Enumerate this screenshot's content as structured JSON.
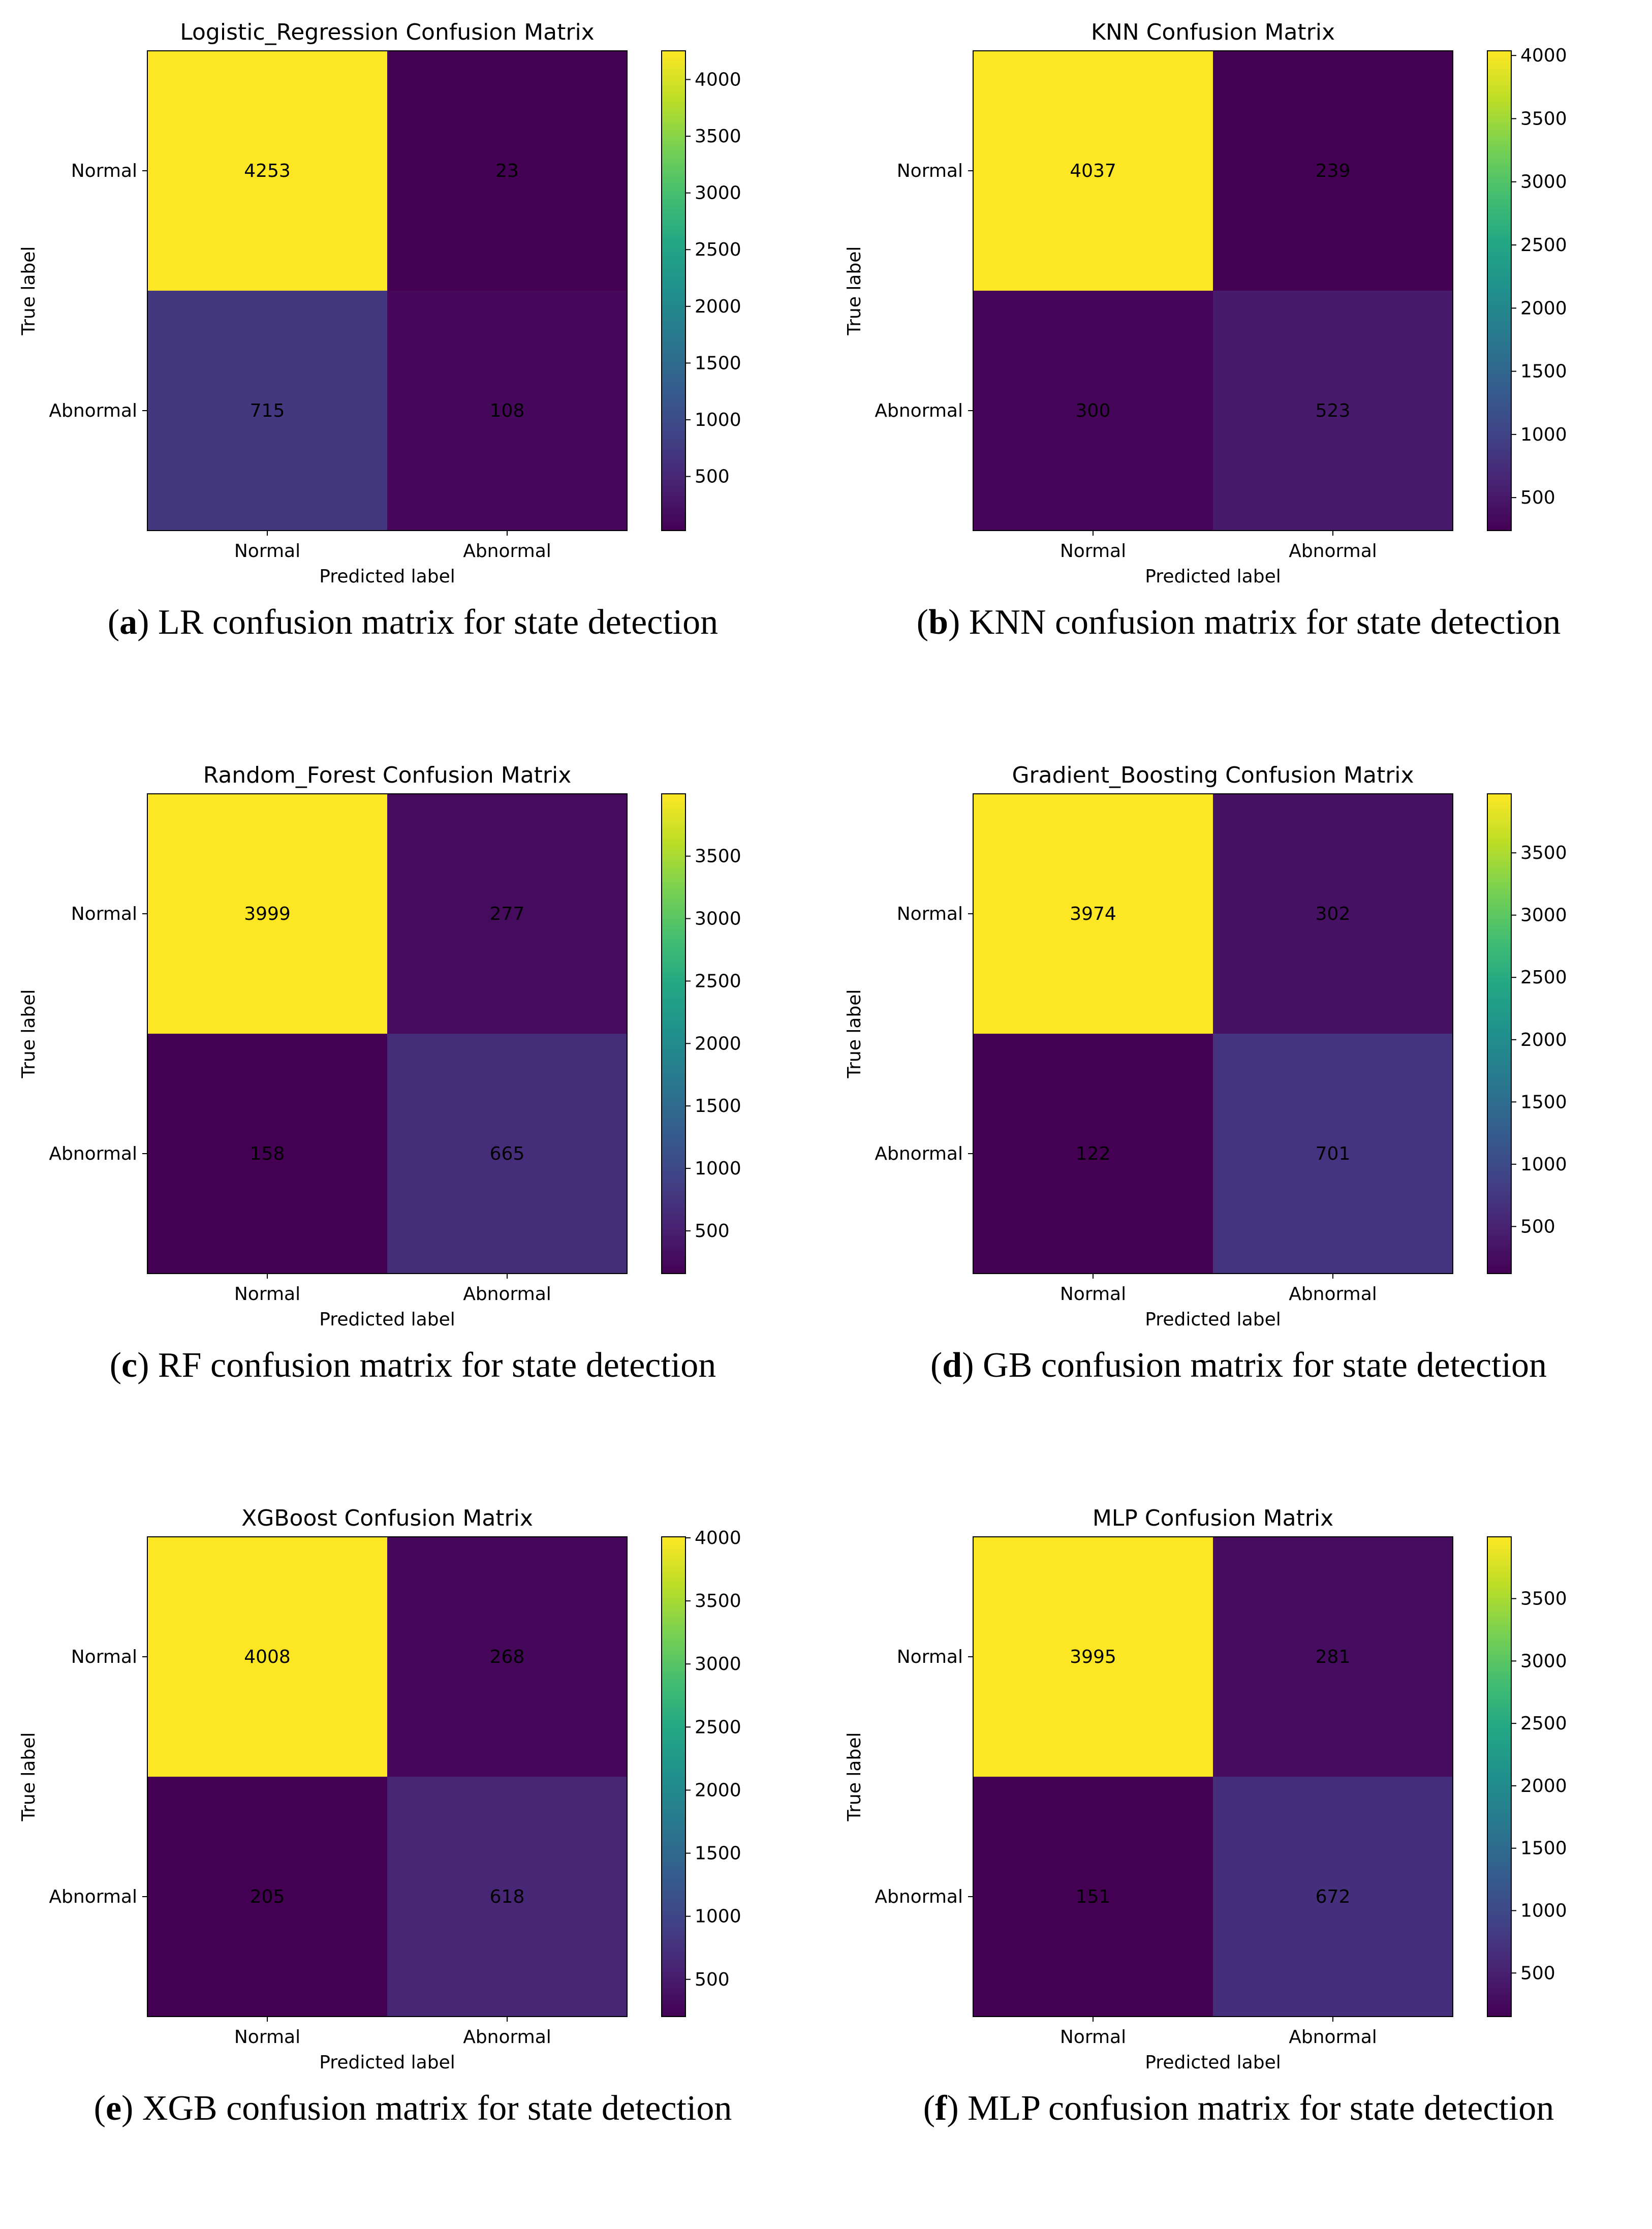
{
  "colormap": "viridis",
  "chart_data": [
    {
      "type": "heatmap",
      "panel_letter": "a",
      "caption": "LR confusion matrix for state detection",
      "title": "Logistic_Regression Confusion Matrix",
      "xlabel": "Predicted label",
      "ylabel": "True label",
      "x_categories": [
        "Normal",
        "Abnormal"
      ],
      "y_categories": [
        "Normal",
        "Abnormal"
      ],
      "values": [
        [
          4253,
          23
        ],
        [
          715,
          108
        ]
      ],
      "colorbar_ticks": [
        500,
        1000,
        1500,
        2000,
        2500,
        3000,
        3500,
        4000
      ]
    },
    {
      "type": "heatmap",
      "panel_letter": "b",
      "caption": "KNN confusion matrix for state detection",
      "title": "KNN Confusion Matrix",
      "xlabel": "Predicted label",
      "ylabel": "True label",
      "x_categories": [
        "Normal",
        "Abnormal"
      ],
      "y_categories": [
        "Normal",
        "Abnormal"
      ],
      "values": [
        [
          4037,
          239
        ],
        [
          300,
          523
        ]
      ],
      "colorbar_ticks": [
        500,
        1000,
        1500,
        2000,
        2500,
        3000,
        3500,
        4000
      ]
    },
    {
      "type": "heatmap",
      "panel_letter": "c",
      "caption": "RF confusion matrix for state detection",
      "title": "Random_Forest Confusion Matrix",
      "xlabel": "Predicted label",
      "ylabel": "True label",
      "x_categories": [
        "Normal",
        "Abnormal"
      ],
      "y_categories": [
        "Normal",
        "Abnormal"
      ],
      "values": [
        [
          3999,
          277
        ],
        [
          158,
          665
        ]
      ],
      "colorbar_ticks": [
        500,
        1000,
        1500,
        2000,
        2500,
        3000,
        3500
      ]
    },
    {
      "type": "heatmap",
      "panel_letter": "d",
      "caption": "GB confusion matrix for state detection",
      "title": "Gradient_Boosting Confusion Matrix",
      "xlabel": "Predicted label",
      "ylabel": "True label",
      "x_categories": [
        "Normal",
        "Abnormal"
      ],
      "y_categories": [
        "Normal",
        "Abnormal"
      ],
      "values": [
        [
          3974,
          302
        ],
        [
          122,
          701
        ]
      ],
      "colorbar_ticks": [
        500,
        1000,
        1500,
        2000,
        2500,
        3000,
        3500
      ]
    },
    {
      "type": "heatmap",
      "panel_letter": "e",
      "caption": "XGB confusion matrix for state detection",
      "title": "XGBoost Confusion Matrix",
      "xlabel": "Predicted label",
      "ylabel": "True label",
      "x_categories": [
        "Normal",
        "Abnormal"
      ],
      "y_categories": [
        "Normal",
        "Abnormal"
      ],
      "values": [
        [
          4008,
          268
        ],
        [
          205,
          618
        ]
      ],
      "colorbar_ticks": [
        500,
        1000,
        1500,
        2000,
        2500,
        3000,
        3500,
        4000
      ]
    },
    {
      "type": "heatmap",
      "panel_letter": "f",
      "caption": "MLP confusion matrix for state detection",
      "title": "MLP Confusion Matrix",
      "xlabel": "Predicted label",
      "ylabel": "True label",
      "x_categories": [
        "Normal",
        "Abnormal"
      ],
      "y_categories": [
        "Normal",
        "Abnormal"
      ],
      "values": [
        [
          3995,
          281
        ],
        [
          151,
          672
        ]
      ],
      "colorbar_ticks": [
        500,
        1000,
        1500,
        2000,
        2500,
        3000,
        3500
      ]
    }
  ]
}
